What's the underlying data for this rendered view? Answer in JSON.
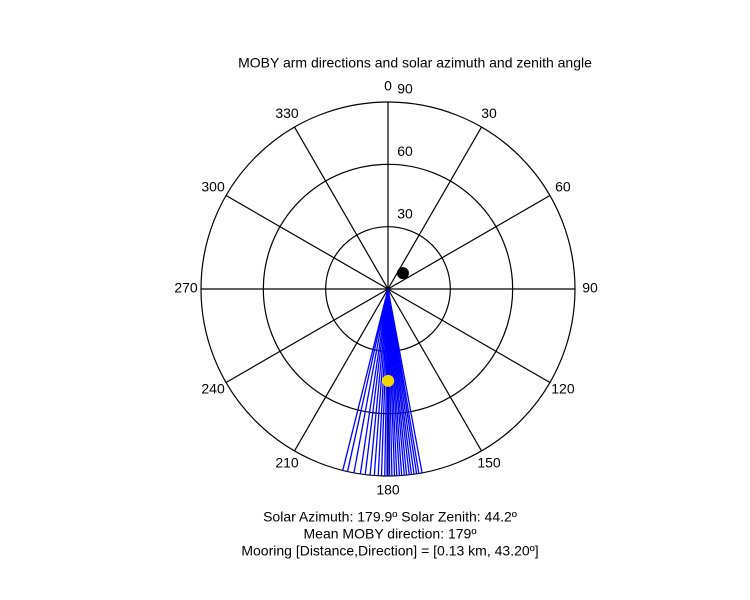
{
  "chart_data": {
    "type": "polar",
    "title": "MOBY arm directions and solar azimuth and zenith angle",
    "theta_ticks": [
      0,
      30,
      60,
      90,
      120,
      150,
      180,
      210,
      240,
      270,
      300,
      330
    ],
    "rlim": [
      0,
      90
    ],
    "rticks": [
      30,
      60,
      90
    ],
    "series": [
      {
        "name": "MOBY arm directions",
        "color": "#0000ff",
        "values": [
          169.5,
          170.5,
          171.2,
          172,
          172.8,
          173.5,
          174.3,
          175,
          175.8,
          176.5,
          177.3,
          178,
          178.8,
          179.5,
          180.3,
          181,
          182,
          183,
          184.2,
          185.5,
          187,
          188.5,
          190.5,
          192.5,
          194
        ]
      },
      {
        "name": "Sun",
        "color": "#f2d600",
        "azimuth": 179.9,
        "zenith": 44.2
      },
      {
        "name": "Mooring",
        "color": "#000000",
        "azimuth": 43.2,
        "zenith": 10.5
      }
    ],
    "annotations": [
      "Solar Azimuth: 179.9º   Solar Zenith: 44.2º",
      "Mean MOBY direction: 179º",
      "Mooring [Distance,Direction] = [0.13 km, 43.20º]"
    ]
  }
}
